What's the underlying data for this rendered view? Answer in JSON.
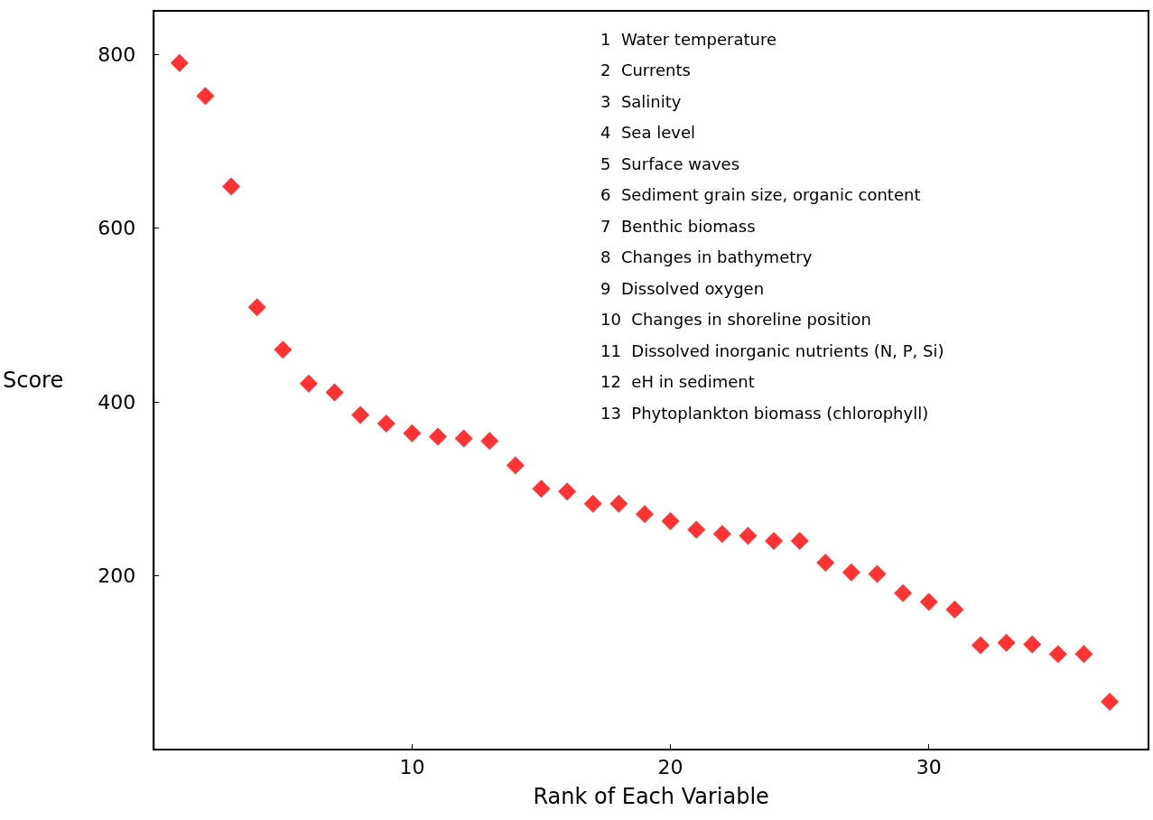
{
  "chart_data": {
    "type": "scatter",
    "xlabel": "Rank of Each Variable",
    "ylabel": "Score",
    "x": [
      1,
      2,
      3,
      4,
      5,
      6,
      7,
      8,
      9,
      10,
      11,
      12,
      13,
      14,
      15,
      16,
      17,
      18,
      19,
      20,
      21,
      22,
      23,
      24,
      25,
      26,
      27,
      28,
      29,
      30,
      31,
      32,
      33,
      34,
      35,
      36,
      37
    ],
    "series": [
      {
        "color": "#ff0000",
        "values": [
          790,
          752,
          648,
          509,
          460,
          421,
          411,
          385,
          375,
          364,
          360,
          358,
          355,
          327,
          300,
          297,
          283,
          283,
          271,
          263,
          253,
          248,
          246,
          240,
          240,
          215,
          204,
          202,
          180,
          170,
          161,
          120,
          123,
          121,
          110,
          110,
          55
        ]
      }
    ],
    "xlim": [
      0,
      38.5
    ],
    "xticks": [
      10,
      20,
      30
    ],
    "ylim": [
      0,
      850
    ],
    "yticks": [
      200,
      400,
      600,
      800
    ],
    "marker": "diamond",
    "grid": false,
    "annotations": [
      "1  Water temperature",
      "2  Currents",
      "3  Salinity",
      "4  Sea level",
      "5  Surface waves",
      "6  Sediment grain size, organic content",
      "7  Benthic biomass",
      "8  Changes in bathymetry",
      "9  Dissolved oxygen",
      "10  Changes in shoreline position",
      "11  Dissolved inorganic nutrients (N, P, Si)",
      "12  eH in sediment",
      "13  Phytoplankton biomass (chlorophyll)"
    ]
  }
}
